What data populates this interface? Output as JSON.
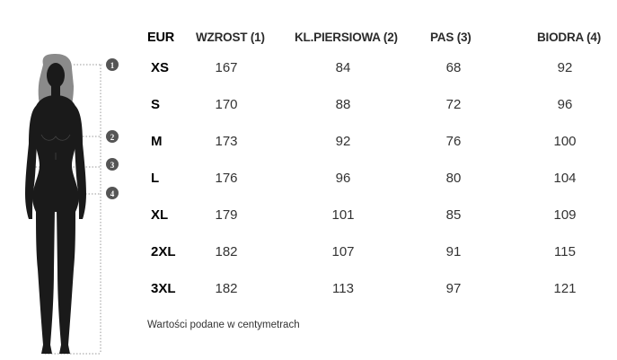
{
  "table": {
    "headers": {
      "size": "EUR",
      "height": "WZROST (1)",
      "chest": "KL.PIERSIOWA (2)",
      "waist": "PAS (3)",
      "hips": "BIODRA (4)"
    },
    "rows": [
      {
        "size": "XS",
        "height": "167",
        "chest": "84",
        "waist": "68",
        "hips": "92"
      },
      {
        "size": "S",
        "height": "170",
        "chest": "88",
        "waist": "72",
        "hips": "96"
      },
      {
        "size": "M",
        "height": "173",
        "chest": "92",
        "waist": "76",
        "hips": "100"
      },
      {
        "size": "L",
        "height": "176",
        "chest": "96",
        "waist": "80",
        "hips": "104"
      },
      {
        "size": "XL",
        "height": "179",
        "chest": "101",
        "waist": "85",
        "hips": "109"
      },
      {
        "size": "2XL",
        "height": "182",
        "chest": "107",
        "waist": "91",
        "hips": "115"
      },
      {
        "size": "3XL",
        "height": "182",
        "chest": "113",
        "waist": "97",
        "hips": "121"
      }
    ]
  },
  "figure": {
    "markers": [
      "1",
      "2",
      "3",
      "4"
    ]
  },
  "note": "Wartości podane w centymetrach",
  "colors": {
    "silhouette": "#1a1a1a",
    "hair": "#8a8a8a",
    "marker": "#555555",
    "guide_line": "#999999"
  }
}
